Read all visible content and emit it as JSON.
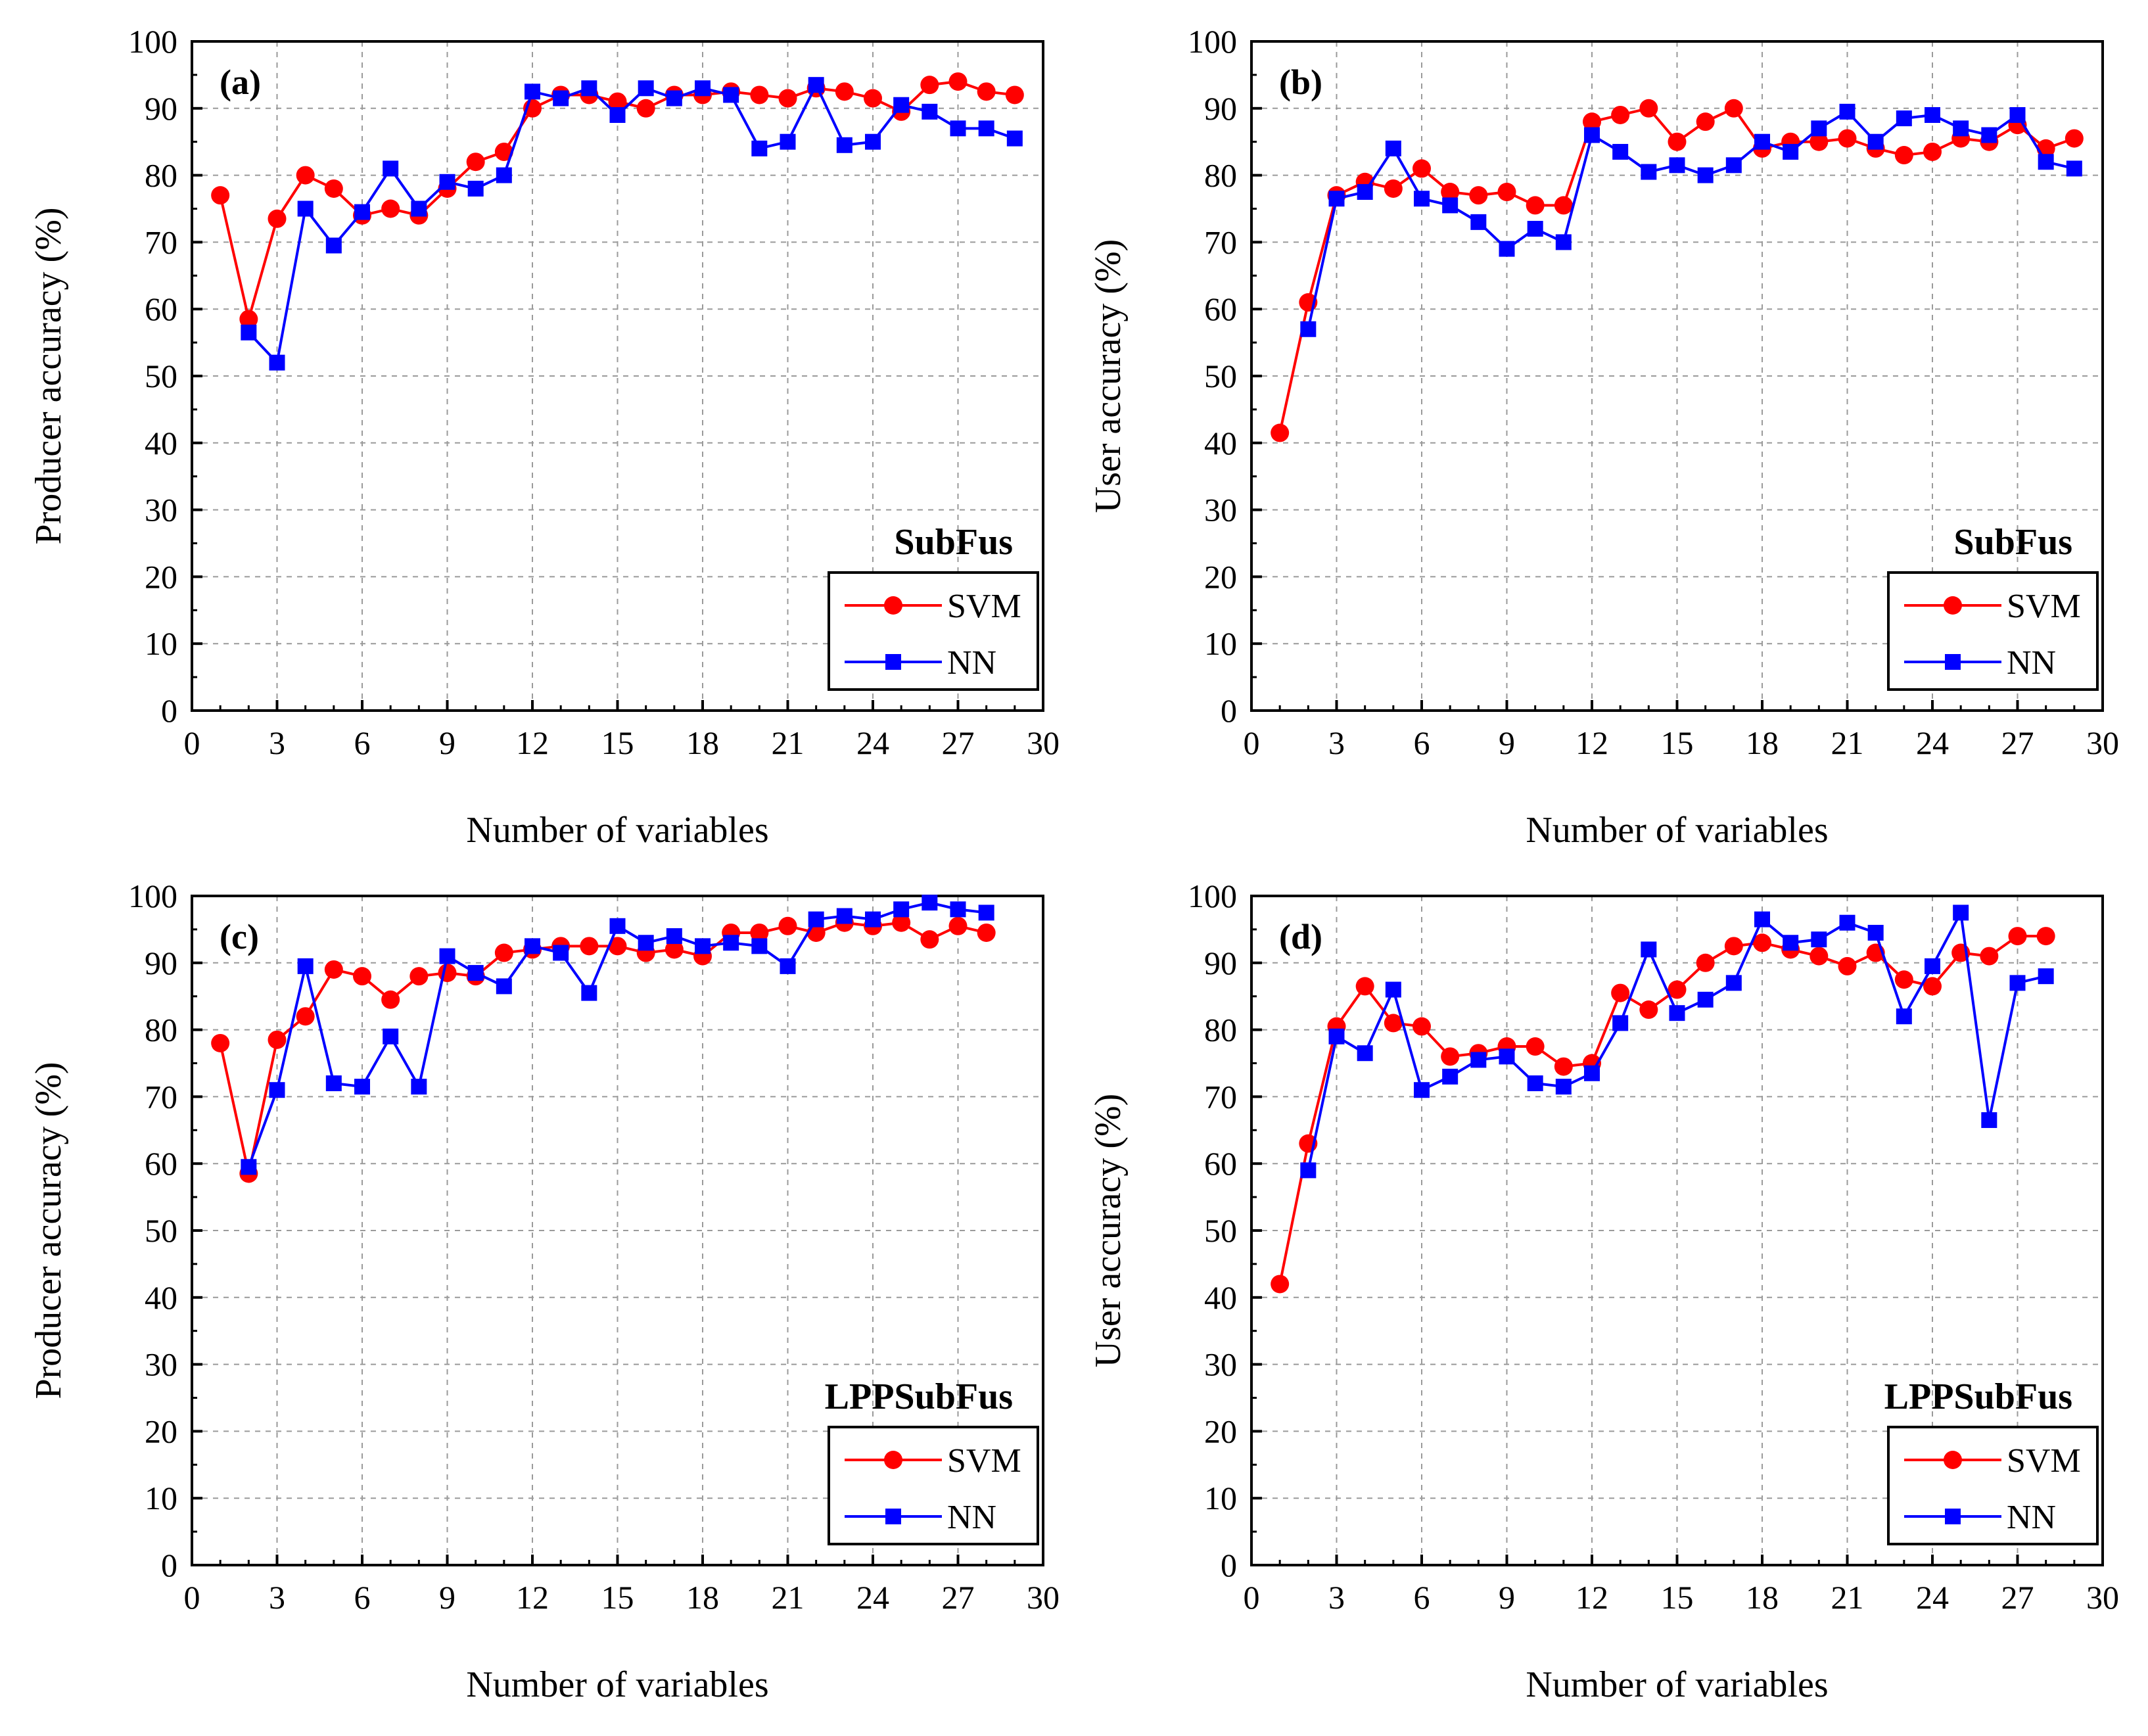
{
  "colors": {
    "svm": "#ff0000",
    "nn": "#0000ff",
    "axis": "#000000",
    "grid": "#9a9a9a"
  },
  "chart_data": [
    {
      "type": "line",
      "panel_label": "(a)",
      "method_label": "SubFus",
      "xlabel": "Number of variables",
      "ylabel": "Producer accuracy (%)",
      "xlim": [
        0,
        30
      ],
      "ylim": [
        0,
        100
      ],
      "x_ticks": [
        "0",
        "3",
        "6",
        "9",
        "12",
        "15",
        "18",
        "21",
        "24",
        "27",
        "30"
      ],
      "y_ticks": [
        "0",
        "10",
        "20",
        "30",
        "40",
        "50",
        "60",
        "70",
        "80",
        "90",
        "100"
      ],
      "grid": true,
      "legend": "bottom-right",
      "series": [
        {
          "name": "SVM",
          "marker": "circle",
          "color": "#ff0000",
          "x": [
            1,
            2,
            3,
            4,
            5,
            6,
            7,
            8,
            9,
            10,
            11,
            12,
            13,
            14,
            15,
            16,
            17,
            18,
            19,
            20,
            21,
            22,
            23,
            24,
            25,
            26,
            27,
            28,
            29
          ],
          "y": [
            77,
            58.5,
            73.5,
            80,
            78,
            74,
            75,
            74,
            78,
            82,
            83.5,
            90,
            92,
            92,
            91,
            90,
            92,
            92,
            92.5,
            92,
            91.5,
            93,
            92.5,
            91.5,
            89.5,
            93.5,
            94,
            92.5,
            92
          ]
        },
        {
          "name": "NN",
          "marker": "square",
          "color": "#0000ff",
          "x": [
            2,
            3,
            4,
            5,
            6,
            7,
            8,
            9,
            10,
            11,
            12,
            13,
            14,
            15,
            16,
            17,
            18,
            19,
            20,
            21,
            22,
            23,
            24,
            25,
            26,
            27,
            28,
            29
          ],
          "y": [
            56.5,
            52,
            75,
            69.5,
            74.5,
            81,
            75,
            79,
            78,
            80,
            92.5,
            91.5,
            93,
            89,
            93,
            91.5,
            93,
            92,
            84,
            85,
            93.5,
            84.5,
            85,
            90.5,
            89.5,
            87,
            87,
            85.5
          ]
        }
      ]
    },
    {
      "type": "line",
      "panel_label": "(b)",
      "method_label": "SubFus",
      "xlabel": "Number of variables",
      "ylabel": "User accuracy (%)",
      "xlim": [
        0,
        30
      ],
      "ylim": [
        0,
        100
      ],
      "x_ticks": [
        "0",
        "3",
        "6",
        "9",
        "12",
        "15",
        "18",
        "21",
        "24",
        "27",
        "30"
      ],
      "y_ticks": [
        "0",
        "10",
        "20",
        "30",
        "40",
        "50",
        "60",
        "70",
        "80",
        "90",
        "100"
      ],
      "grid": true,
      "legend": "bottom-right",
      "series": [
        {
          "name": "SVM",
          "marker": "circle",
          "color": "#ff0000",
          "x": [
            1,
            2,
            3,
            4,
            5,
            6,
            7,
            8,
            9,
            10,
            11,
            12,
            13,
            14,
            15,
            16,
            17,
            18,
            19,
            20,
            21,
            22,
            23,
            24,
            25,
            26,
            27,
            28,
            29
          ],
          "y": [
            41.5,
            61,
            77,
            79,
            78,
            81,
            77.5,
            77,
            77.5,
            75.5,
            75.5,
            88,
            89,
            90,
            85,
            88,
            90,
            84,
            85,
            85,
            85.5,
            84,
            83,
            83.5,
            85.5,
            85,
            87.5,
            84,
            85.5
          ]
        },
        {
          "name": "NN",
          "marker": "square",
          "color": "#0000ff",
          "x": [
            2,
            3,
            4,
            5,
            6,
            7,
            8,
            9,
            10,
            11,
            12,
            13,
            14,
            15,
            16,
            17,
            18,
            19,
            20,
            21,
            22,
            23,
            24,
            25,
            26,
            27,
            28,
            29
          ],
          "y": [
            57,
            76.5,
            77.5,
            84,
            76.5,
            75.5,
            73,
            69,
            72,
            70,
            86,
            83.5,
            80.5,
            81.5,
            80,
            81.5,
            85,
            83.5,
            87,
            89.5,
            85,
            88.5,
            89,
            87,
            86,
            89,
            82,
            81
          ]
        }
      ]
    },
    {
      "type": "line",
      "panel_label": "(c)",
      "method_label": "LPPSubFus",
      "xlabel": "Number of variables",
      "ylabel": "Producer accuracy (%)",
      "xlim": [
        0,
        30
      ],
      "ylim": [
        0,
        100
      ],
      "x_ticks": [
        "0",
        "3",
        "6",
        "9",
        "12",
        "15",
        "18",
        "21",
        "24",
        "27",
        "30"
      ],
      "y_ticks": [
        "0",
        "10",
        "20",
        "30",
        "40",
        "50",
        "60",
        "70",
        "80",
        "90",
        "100"
      ],
      "grid": true,
      "legend": "bottom-right",
      "series": [
        {
          "name": "SVM",
          "marker": "circle",
          "color": "#ff0000",
          "x": [
            1,
            2,
            3,
            4,
            5,
            6,
            7,
            8,
            9,
            10,
            11,
            12,
            13,
            14,
            15,
            16,
            17,
            18,
            19,
            20,
            21,
            22,
            23,
            24,
            25,
            26,
            27,
            28
          ],
          "y": [
            78,
            58.5,
            78.5,
            82,
            89,
            88,
            84.5,
            88,
            88.5,
            88,
            91.5,
            92,
            92.5,
            92.5,
            92.5,
            91.5,
            92,
            91,
            94.5,
            94.5,
            95.5,
            94.5,
            96,
            95.5,
            96,
            93.5,
            95.5,
            94.5
          ]
        },
        {
          "name": "NN",
          "marker": "square",
          "color": "#0000ff",
          "x": [
            2,
            3,
            4,
            5,
            6,
            7,
            8,
            9,
            10,
            11,
            12,
            13,
            14,
            15,
            16,
            17,
            18,
            19,
            20,
            21,
            22,
            23,
            24,
            25,
            26,
            27,
            28
          ],
          "y": [
            59.5,
            71,
            89.5,
            72,
            71.5,
            79,
            71.5,
            91,
            88.5,
            86.5,
            92.5,
            91.5,
            85.5,
            95.5,
            93,
            94,
            92.5,
            93,
            92.5,
            89.5,
            96.5,
            97,
            96.5,
            98,
            99,
            98,
            97.5
          ]
        }
      ]
    },
    {
      "type": "line",
      "panel_label": "(d)",
      "method_label": "LPPSubFus",
      "xlabel": "Number of variables",
      "ylabel": "User accuracy (%)",
      "xlim": [
        0,
        30
      ],
      "ylim": [
        0,
        100
      ],
      "x_ticks": [
        "0",
        "3",
        "6",
        "9",
        "12",
        "15",
        "18",
        "21",
        "24",
        "27",
        "30"
      ],
      "y_ticks": [
        "0",
        "10",
        "20",
        "30",
        "40",
        "50",
        "60",
        "70",
        "80",
        "90",
        "100"
      ],
      "grid": true,
      "legend": "bottom-right",
      "series": [
        {
          "name": "SVM",
          "marker": "circle",
          "color": "#ff0000",
          "x": [
            1,
            2,
            3,
            4,
            5,
            6,
            7,
            8,
            9,
            10,
            11,
            12,
            13,
            14,
            15,
            16,
            17,
            18,
            19,
            20,
            21,
            22,
            23,
            24,
            25,
            26,
            27,
            28
          ],
          "y": [
            42,
            63,
            80.5,
            86.5,
            81,
            80.5,
            76,
            76.5,
            77.5,
            77.5,
            74.5,
            75,
            85.5,
            83,
            86,
            90,
            92.5,
            93,
            92,
            91,
            89.5,
            91.5,
            87.5,
            86.5,
            91.5,
            91,
            94,
            94
          ]
        },
        {
          "name": "NN",
          "marker": "square",
          "color": "#0000ff",
          "x": [
            2,
            3,
            4,
            5,
            6,
            7,
            8,
            9,
            10,
            11,
            12,
            13,
            14,
            15,
            16,
            17,
            18,
            19,
            20,
            21,
            22,
            23,
            24,
            25,
            26,
            27,
            28
          ],
          "y": [
            59,
            79,
            76.5,
            86,
            71,
            73,
            75.5,
            76,
            72,
            71.5,
            73.5,
            81,
            92,
            82.5,
            84.5,
            87,
            96.5,
            93,
            93.5,
            96,
            94.5,
            82,
            89.5,
            97.5,
            66.5,
            87,
            88
          ]
        }
      ]
    }
  ]
}
